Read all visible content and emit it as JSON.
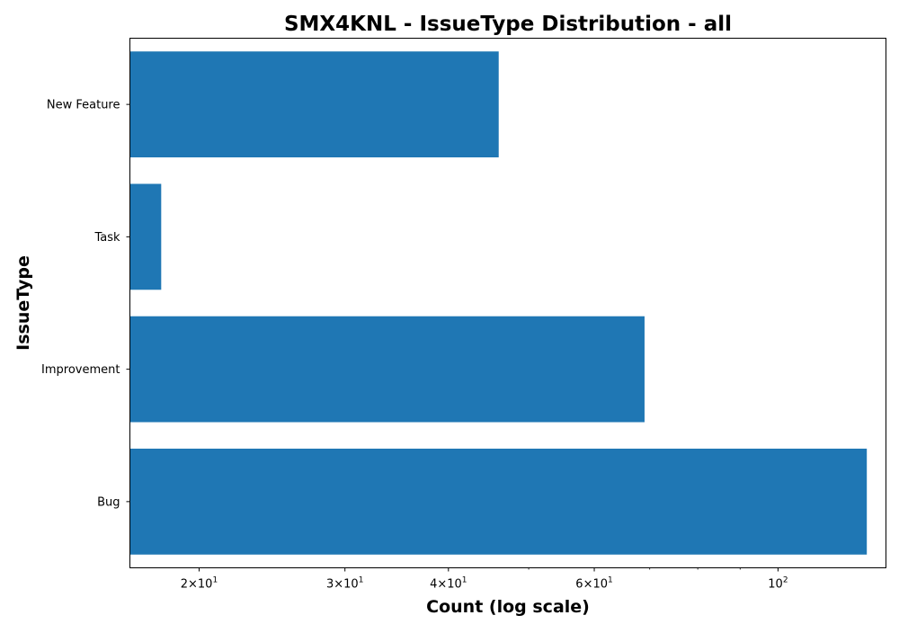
{
  "chart_data": {
    "type": "bar",
    "orientation": "horizontal",
    "title": "SMX4KNL - IssueType Distribution - all",
    "xlabel": "Count (log scale)",
    "ylabel": "IssueType",
    "x_scale": "log",
    "xlim": [
      16.5,
      135
    ],
    "x_major_ticks": [
      {
        "value": 20,
        "mantissa": "2",
        "exponent": "1"
      },
      {
        "value": 30,
        "mantissa": "3",
        "exponent": "1"
      },
      {
        "value": 40,
        "mantissa": "4",
        "exponent": "1"
      },
      {
        "value": 60,
        "mantissa": "6",
        "exponent": "1"
      },
      {
        "value": 100,
        "mantissa": "",
        "exponent": "2"
      }
    ],
    "x_minor_ticks": [
      50,
      70,
      80,
      90
    ],
    "categories": [
      "New Feature",
      "Task",
      "Improvement",
      "Bug"
    ],
    "values": [
      46,
      18,
      69,
      128
    ],
    "bar_color": "#1f77b4",
    "grid": false,
    "legend": "none"
  }
}
